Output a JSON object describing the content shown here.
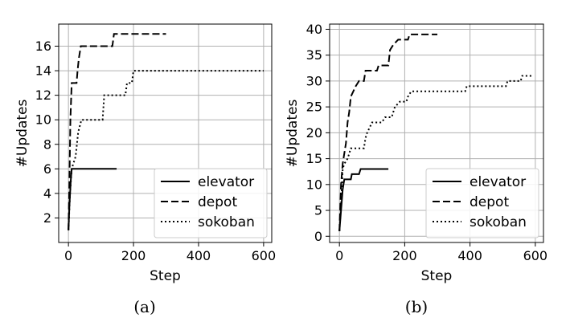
{
  "chart_data": [
    {
      "type": "line",
      "panel_label": "(a)",
      "xlabel": "Step",
      "ylabel": "#Updates",
      "xlim": [
        -30,
        625
      ],
      "ylim": [
        0,
        17.8
      ],
      "xticks": [
        0,
        200,
        400,
        600
      ],
      "yticks": [
        2,
        4,
        6,
        8,
        10,
        12,
        14,
        16
      ],
      "grid": true,
      "legend": "lower-right",
      "series": [
        {
          "name": "elevator",
          "style": "solid",
          "points": [
            [
              0,
              1
            ],
            [
              3,
              3
            ],
            [
              5,
              4
            ],
            [
              7,
              5
            ],
            [
              10,
              6
            ],
            [
              40,
              6
            ],
            [
              148,
              6
            ]
          ]
        },
        {
          "name": "depot",
          "style": "dashed",
          "points": [
            [
              0,
              1
            ],
            [
              3,
              5
            ],
            [
              6,
              10
            ],
            [
              10,
              13
            ],
            [
              25,
              13
            ],
            [
              28,
              14
            ],
            [
              32,
              15
            ],
            [
              38,
              16
            ],
            [
              135,
              16
            ],
            [
              140,
              17
            ],
            [
              300,
              17
            ]
          ]
        },
        {
          "name": "sokoban",
          "style": "dotted",
          "points": [
            [
              0,
              1
            ],
            [
              5,
              4
            ],
            [
              10,
              6
            ],
            [
              22,
              7
            ],
            [
              30,
              9
            ],
            [
              40,
              10
            ],
            [
              105,
              10
            ],
            [
              110,
              12
            ],
            [
              175,
              12
            ],
            [
              180,
              13
            ],
            [
              195,
              13
            ],
            [
              200,
              14
            ],
            [
              600,
              14
            ]
          ]
        }
      ]
    },
    {
      "type": "line",
      "panel_label": "(b)",
      "xlabel": "Step",
      "ylabel": "#Updates",
      "xlim": [
        -30,
        625
      ],
      "ylim": [
        -1.2,
        41
      ],
      "xticks": [
        0,
        200,
        400,
        600
      ],
      "yticks": [
        0,
        5,
        10,
        15,
        20,
        25,
        30,
        35,
        40
      ],
      "grid": true,
      "legend": "lower-right",
      "series": [
        {
          "name": "elevator",
          "style": "solid",
          "points": [
            [
              0,
              1
            ],
            [
              5,
              5
            ],
            [
              10,
              9
            ],
            [
              15,
              11
            ],
            [
              35,
              11
            ],
            [
              38,
              12
            ],
            [
              60,
              12
            ],
            [
              65,
              13
            ],
            [
              150,
              13
            ]
          ]
        },
        {
          "name": "depot",
          "style": "dashed",
          "points": [
            [
              0,
              1
            ],
            [
              5,
              10
            ],
            [
              10,
              14
            ],
            [
              15,
              16
            ],
            [
              20,
              18
            ],
            [
              25,
              22
            ],
            [
              30,
              24
            ],
            [
              35,
              27
            ],
            [
              50,
              29
            ],
            [
              60,
              30
            ],
            [
              75,
              30
            ],
            [
              80,
              32
            ],
            [
              115,
              32
            ],
            [
              120,
              33
            ],
            [
              150,
              33
            ],
            [
              155,
              36
            ],
            [
              165,
              37
            ],
            [
              180,
              38
            ],
            [
              210,
              38
            ],
            [
              215,
              39
            ],
            [
              300,
              39
            ]
          ]
        },
        {
          "name": "sokoban",
          "style": "dotted",
          "points": [
            [
              0,
              1
            ],
            [
              5,
              6
            ],
            [
              10,
              13
            ],
            [
              15,
              14
            ],
            [
              25,
              15
            ],
            [
              35,
              17
            ],
            [
              75,
              17
            ],
            [
              80,
              19
            ],
            [
              85,
              20
            ],
            [
              100,
              22
            ],
            [
              130,
              22
            ],
            [
              140,
              23
            ],
            [
              160,
              23
            ],
            [
              165,
              24
            ],
            [
              170,
              25
            ],
            [
              185,
              26
            ],
            [
              205,
              26
            ],
            [
              210,
              27
            ],
            [
              220,
              28
            ],
            [
              385,
              28
            ],
            [
              390,
              29
            ],
            [
              510,
              29
            ],
            [
              515,
              30
            ],
            [
              555,
              30
            ],
            [
              560,
              31
            ],
            [
              590,
              31
            ]
          ]
        }
      ]
    }
  ]
}
